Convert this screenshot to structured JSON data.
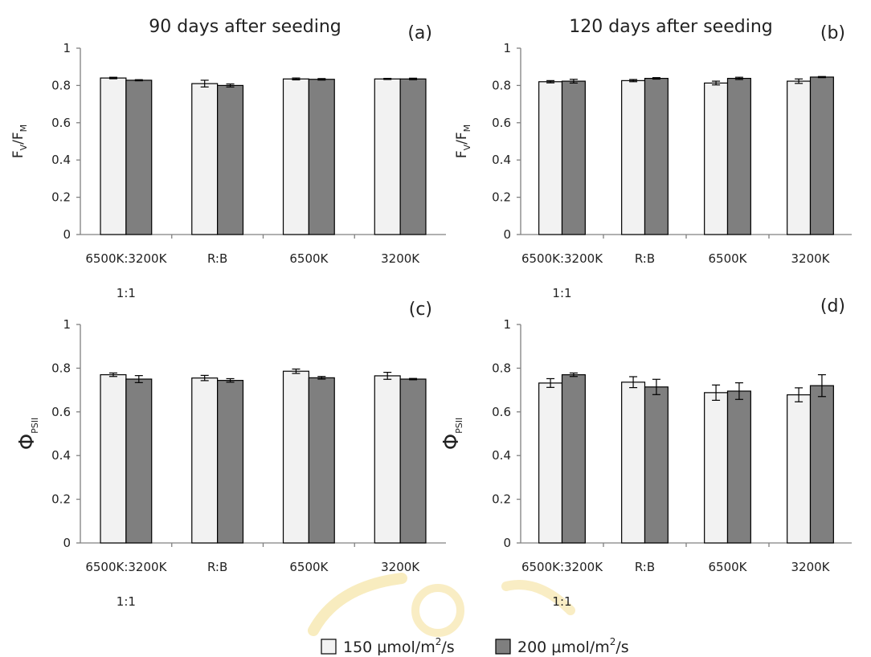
{
  "chart_data": [
    {
      "type": "bar",
      "title": "90 days after seeding",
      "panel_label": "(a)",
      "ylabel_main": "F",
      "ylabel_sub1": "V",
      "ylabel_sep": "/F",
      "ylabel_sub2": "M",
      "ylim": [
        0,
        1
      ],
      "yticks": [
        "0",
        "0.2",
        "0.4",
        "0.6",
        "0.8",
        "1"
      ],
      "categories": [
        "6500K:3200K",
        "R:B",
        "6500K",
        "3200K"
      ],
      "category_sublabels": [
        "1:1",
        "",
        "",
        ""
      ],
      "series": [
        {
          "name": "150 μmol/m²/s",
          "values": [
            0.84,
            0.81,
            0.835,
            0.835
          ],
          "errors": [
            0.004,
            0.018,
            0.005,
            0.003
          ]
        },
        {
          "name": "200 μmol/m²/s",
          "values": [
            0.828,
            0.8,
            0.833,
            0.835
          ],
          "errors": [
            0.003,
            0.008,
            0.004,
            0.004
          ]
        }
      ]
    },
    {
      "type": "bar",
      "title": "120 days after seeding",
      "panel_label": "(b)",
      "ylabel_main": "F",
      "ylabel_sub1": "V",
      "ylabel_sep": "/F",
      "ylabel_sub2": "M",
      "ylim": [
        0,
        1
      ],
      "yticks": [
        "0",
        "0.2",
        "0.4",
        "0.6",
        "0.8",
        "1"
      ],
      "categories": [
        "6500K:3200K",
        "R:B",
        "6500K",
        "3200K"
      ],
      "category_sublabels": [
        "1:1",
        "",
        "",
        ""
      ],
      "series": [
        {
          "name": "150 μmol/m²/s",
          "values": [
            0.82,
            0.826,
            0.813,
            0.823
          ],
          "errors": [
            0.006,
            0.006,
            0.01,
            0.012
          ]
        },
        {
          "name": "200 μmol/m²/s",
          "values": [
            0.823,
            0.838,
            0.838,
            0.845
          ],
          "errors": [
            0.01,
            0.004,
            0.006,
            0.003
          ]
        }
      ]
    },
    {
      "type": "bar",
      "title": "",
      "panel_label": "(c)",
      "ylabel_main": "Φ",
      "ylabel_sub1": "PSII",
      "ylabel_sep": "",
      "ylabel_sub2": "",
      "ylim": [
        0,
        1
      ],
      "yticks": [
        "0",
        "0.2",
        "0.4",
        "0.6",
        "0.8",
        "1"
      ],
      "categories": [
        "6500K:3200K",
        "R:B",
        "6500K",
        "3200K"
      ],
      "category_sublabels": [
        "1:1",
        "",
        "",
        ""
      ],
      "series": [
        {
          "name": "150 μmol/m²/s",
          "values": [
            0.77,
            0.755,
            0.786,
            0.765
          ],
          "errors": [
            0.008,
            0.012,
            0.01,
            0.016
          ]
        },
        {
          "name": "200 μmol/m²/s",
          "values": [
            0.75,
            0.744,
            0.756,
            0.75
          ],
          "errors": [
            0.016,
            0.008,
            0.006,
            0.003
          ]
        }
      ]
    },
    {
      "type": "bar",
      "title": "",
      "panel_label": "(d)",
      "ylabel_main": "Φ",
      "ylabel_sub1": "PSII",
      "ylabel_sep": "",
      "ylabel_sub2": "",
      "ylim": [
        0,
        1
      ],
      "yticks": [
        "0",
        "0.2",
        "0.4",
        "0.6",
        "0.8",
        "1"
      ],
      "categories": [
        "6500K:3200K",
        "R:B",
        "6500K",
        "3200K"
      ],
      "category_sublabels": [
        "1:1",
        "",
        "",
        ""
      ],
      "series": [
        {
          "name": "150 μmol/m²/s",
          "values": [
            0.732,
            0.736,
            0.688,
            0.678
          ],
          "errors": [
            0.02,
            0.025,
            0.035,
            0.032
          ]
        },
        {
          "name": "200 μmol/m²/s",
          "values": [
            0.77,
            0.714,
            0.695,
            0.72
          ],
          "errors": [
            0.008,
            0.035,
            0.038,
            0.05
          ]
        }
      ]
    }
  ],
  "legend": {
    "placement": "bottom-center",
    "items": [
      {
        "prefix": "150 μmol/m",
        "sup": "2",
        "suffix": "/s",
        "color": "#f2f2f2"
      },
      {
        "prefix": "200 μmol/m",
        "sup": "2",
        "suffix": "/s",
        "color": "#7f7f7f"
      }
    ]
  },
  "colors": {
    "series_light": "#f2f2f2",
    "series_dark": "#7f7f7f",
    "axis": "#808080",
    "watermark": "#f3dc8a"
  }
}
